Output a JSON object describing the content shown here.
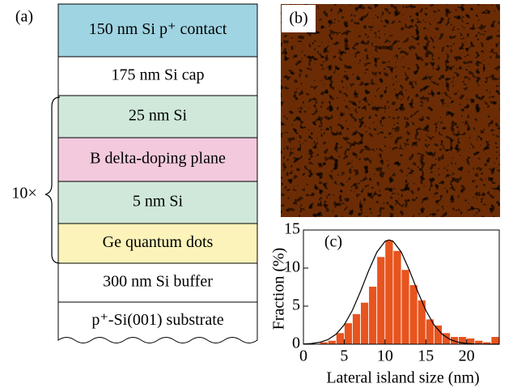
{
  "structure": {
    "label": "(a)",
    "repeat_label": "10×",
    "layers": [
      {
        "text": "150 nm Si p⁺ contact",
        "color": "#9fd4e2"
      },
      {
        "text": "175 nm Si cap",
        "color": "#ffffff"
      },
      {
        "text": "25 nm Si",
        "color": "#cfe8d9"
      },
      {
        "text": "B delta-doping plane",
        "color": "#f3c9dd"
      },
      {
        "text": "5 nm Si",
        "color": "#cfe8d9"
      },
      {
        "text": "Ge quantum dots",
        "color": "#fbf3b9"
      },
      {
        "text": "300 nm Si buffer",
        "color": "#ffffff"
      },
      {
        "text": "p⁺-Si(001) substrate",
        "color": "#ffffff"
      }
    ]
  },
  "afm_image": {
    "label": "(b)"
  },
  "chart_data": {
    "type": "histogram",
    "label": "(c)",
    "x_label": "Lateral island size (nm)",
    "y_label": "Fraction (%)",
    "bins": [
      2,
      3,
      4,
      5,
      6,
      7,
      8,
      9,
      10,
      11,
      12,
      13,
      14,
      15,
      16,
      17,
      18,
      19,
      20,
      21,
      22,
      23,
      24
    ],
    "values": [
      0.3,
      0.5,
      1.5,
      2.8,
      4.0,
      5.5,
      7.6,
      11.5,
      13.7,
      12.3,
      9.8,
      7.8,
      5.8,
      3.3,
      2.5,
      1.5,
      1.0,
      1.0,
      0.8,
      0.5,
      0.3,
      1.0
    ],
    "color": "#e8541e",
    "fit": {
      "x": [
        0,
        1,
        2,
        3,
        4,
        5,
        6,
        7,
        8,
        9,
        10,
        10.5,
        11,
        12,
        13,
        14,
        15,
        16,
        17,
        18,
        19,
        20,
        21,
        22,
        23,
        24
      ],
      "values": [
        0.03,
        0.09,
        0.25,
        0.6,
        1.31,
        2.55,
        4.45,
        6.94,
        9.68,
        12.09,
        13.51,
        13.7,
        13.51,
        12.09,
        9.68,
        6.94,
        4.45,
        2.55,
        1.31,
        0.6,
        0.25,
        0.09,
        0.03,
        0.01,
        0,
        0
      ],
      "color": "#000000"
    },
    "xlim": [
      0,
      24
    ],
    "ylim": [
      0,
      15
    ],
    "xticks": [
      0,
      5,
      10,
      15,
      20
    ],
    "yticks": [
      0,
      5,
      10,
      15
    ]
  }
}
